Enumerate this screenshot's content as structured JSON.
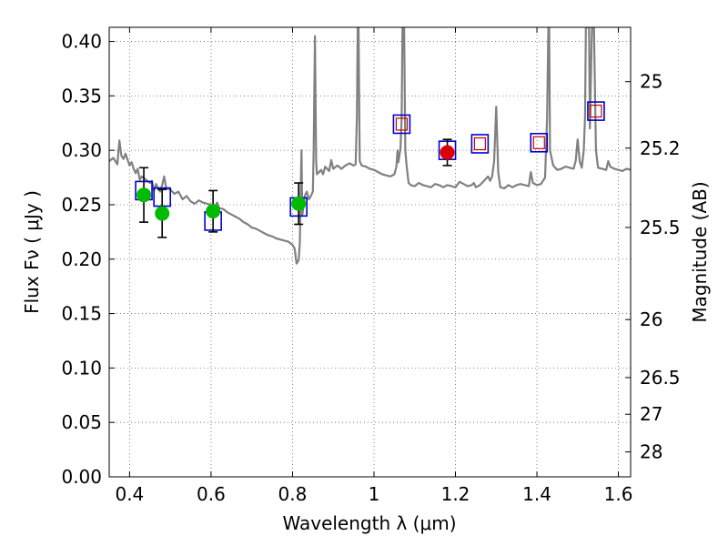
{
  "chart_data": {
    "type": "scatter",
    "xlabel": "Wavelength  λ (μm)",
    "ylabel": "Flux  Fν  ( μJy )",
    "ylabel_right": "Magnitude (AB)",
    "xlim": [
      0.35,
      1.63
    ],
    "ylim": [
      0.0,
      0.413
    ],
    "x_ticks": [
      0.4,
      0.6,
      0.8,
      1.0,
      1.2,
      1.4,
      1.6
    ],
    "x_tick_labels": [
      "0.4",
      "0.6",
      "0.8",
      "1",
      "1.2",
      "1.4",
      "1.6"
    ],
    "y_ticks": [
      0.0,
      0.05,
      0.1,
      0.15,
      0.2,
      0.25,
      0.3,
      0.35,
      0.4
    ],
    "y_tick_labels": [
      "0.00",
      "0.05",
      "0.10",
      "0.15",
      "0.20",
      "0.25",
      "0.30",
      "0.35",
      "0.40"
    ],
    "right_ticks": [
      {
        "label": "25",
        "flux": 0.3631
      },
      {
        "label": "25.2",
        "flux": 0.302
      },
      {
        "label": "25.5",
        "flux": 0.2291
      },
      {
        "label": "26",
        "flux": 0.1445
      },
      {
        "label": "26.5",
        "flux": 0.0912
      },
      {
        "label": "27",
        "flux": 0.0575
      },
      {
        "label": "28",
        "flux": 0.0229
      }
    ],
    "grid": true,
    "colors": {
      "template": "#808080",
      "model_box": "#0000cc",
      "model_box_inner": "#cc0000",
      "observed_green": "#00bb00",
      "observed_red": "#dd0000",
      "error_bar": "#000000"
    },
    "series": [
      {
        "name": "template spectrum",
        "style": "line",
        "points": [
          [
            0.35,
            0.29
          ],
          [
            0.36,
            0.293
          ],
          [
            0.37,
            0.287
          ],
          [
            0.375,
            0.309
          ],
          [
            0.38,
            0.295
          ],
          [
            0.385,
            0.292
          ],
          [
            0.39,
            0.297
          ],
          [
            0.4,
            0.286
          ],
          [
            0.405,
            0.289
          ],
          [
            0.41,
            0.283
          ],
          [
            0.415,
            0.279
          ],
          [
            0.42,
            0.283
          ],
          [
            0.425,
            0.273
          ],
          [
            0.43,
            0.276
          ],
          [
            0.44,
            0.273
          ],
          [
            0.45,
            0.27
          ],
          [
            0.455,
            0.272
          ],
          [
            0.46,
            0.263
          ],
          [
            0.465,
            0.269
          ],
          [
            0.47,
            0.265
          ],
          [
            0.475,
            0.262
          ],
          [
            0.48,
            0.268
          ],
          [
            0.485,
            0.276
          ],
          [
            0.49,
            0.265
          ],
          [
            0.5,
            0.264
          ],
          [
            0.51,
            0.26
          ],
          [
            0.52,
            0.262
          ],
          [
            0.53,
            0.255
          ],
          [
            0.54,
            0.258
          ],
          [
            0.55,
            0.253
          ],
          [
            0.56,
            0.251
          ],
          [
            0.57,
            0.254
          ],
          [
            0.58,
            0.252
          ],
          [
            0.59,
            0.251
          ],
          [
            0.6,
            0.25
          ],
          [
            0.61,
            0.248
          ],
          [
            0.615,
            0.252
          ],
          [
            0.62,
            0.247
          ],
          [
            0.63,
            0.246
          ],
          [
            0.64,
            0.243
          ],
          [
            0.65,
            0.241
          ],
          [
            0.66,
            0.239
          ],
          [
            0.67,
            0.237
          ],
          [
            0.68,
            0.234
          ],
          [
            0.69,
            0.232
          ],
          [
            0.7,
            0.229
          ],
          [
            0.71,
            0.228
          ],
          [
            0.72,
            0.226
          ],
          [
            0.73,
            0.224
          ],
          [
            0.74,
            0.222
          ],
          [
            0.75,
            0.221
          ],
          [
            0.76,
            0.219
          ],
          [
            0.77,
            0.218
          ],
          [
            0.78,
            0.217
          ],
          [
            0.79,
            0.216
          ],
          [
            0.8,
            0.213
          ],
          [
            0.805,
            0.21
          ],
          [
            0.81,
            0.196
          ],
          [
            0.815,
            0.199
          ],
          [
            0.818,
            0.215
          ],
          [
            0.82,
            0.26
          ],
          [
            0.822,
            0.3
          ],
          [
            0.824,
            0.24
          ],
          [
            0.83,
            0.258
          ],
          [
            0.835,
            0.262
          ],
          [
            0.84,
            0.255
          ],
          [
            0.845,
            0.258
          ],
          [
            0.85,
            0.262
          ],
          [
            0.852,
            0.3
          ],
          [
            0.855,
            0.405
          ],
          [
            0.858,
            0.29
          ],
          [
            0.86,
            0.278
          ],
          [
            0.87,
            0.282
          ],
          [
            0.875,
            0.278
          ],
          [
            0.88,
            0.285
          ],
          [
            0.89,
            0.281
          ],
          [
            0.895,
            0.291
          ],
          [
            0.9,
            0.283
          ],
          [
            0.91,
            0.286
          ],
          [
            0.92,
            0.283
          ],
          [
            0.93,
            0.286
          ],
          [
            0.94,
            0.288
          ],
          [
            0.95,
            0.286
          ],
          [
            0.955,
            0.287
          ],
          [
            0.958,
            0.33
          ],
          [
            0.96,
            0.413
          ],
          [
            0.962,
            0.413
          ],
          [
            0.965,
            0.29
          ],
          [
            0.97,
            0.286
          ],
          [
            0.98,
            0.285
          ],
          [
            0.99,
            0.283
          ],
          [
            1.0,
            0.282
          ],
          [
            1.01,
            0.28
          ],
          [
            1.02,
            0.278
          ],
          [
            1.03,
            0.277
          ],
          [
            1.04,
            0.276
          ],
          [
            1.05,
            0.278
          ],
          [
            1.055,
            0.285
          ],
          [
            1.058,
            0.3
          ],
          [
            1.06,
            0.289
          ],
          [
            1.065,
            0.302
          ],
          [
            1.068,
            0.33
          ],
          [
            1.07,
            0.413
          ],
          [
            1.074,
            0.413
          ],
          [
            1.077,
            0.3
          ],
          [
            1.08,
            0.286
          ],
          [
            1.085,
            0.27
          ],
          [
            1.09,
            0.268
          ],
          [
            1.1,
            0.267
          ],
          [
            1.11,
            0.27
          ],
          [
            1.12,
            0.268
          ],
          [
            1.13,
            0.267
          ],
          [
            1.14,
            0.266
          ],
          [
            1.15,
            0.269
          ],
          [
            1.16,
            0.268
          ],
          [
            1.17,
            0.266
          ],
          [
            1.18,
            0.268
          ],
          [
            1.19,
            0.267
          ],
          [
            1.2,
            0.266
          ],
          [
            1.21,
            0.271
          ],
          [
            1.22,
            0.269
          ],
          [
            1.23,
            0.267
          ],
          [
            1.24,
            0.268
          ],
          [
            1.245,
            0.27
          ],
          [
            1.25,
            0.266
          ],
          [
            1.26,
            0.268
          ],
          [
            1.27,
            0.272
          ],
          [
            1.28,
            0.276
          ],
          [
            1.285,
            0.272
          ],
          [
            1.29,
            0.276
          ],
          [
            1.295,
            0.29
          ],
          [
            1.3,
            0.34
          ],
          [
            1.305,
            0.28
          ],
          [
            1.31,
            0.266
          ],
          [
            1.32,
            0.265
          ],
          [
            1.33,
            0.268
          ],
          [
            1.34,
            0.266
          ],
          [
            1.35,
            0.268
          ],
          [
            1.36,
            0.269
          ],
          [
            1.37,
            0.268
          ],
          [
            1.38,
            0.267
          ],
          [
            1.385,
            0.28
          ],
          [
            1.39,
            0.27
          ],
          [
            1.4,
            0.268
          ],
          [
            1.41,
            0.269
          ],
          [
            1.42,
            0.275
          ],
          [
            1.425,
            0.33
          ],
          [
            1.428,
            0.413
          ],
          [
            1.43,
            0.413
          ],
          [
            1.432,
            0.3
          ],
          [
            1.44,
            0.286
          ],
          [
            1.45,
            0.282
          ],
          [
            1.46,
            0.283
          ],
          [
            1.47,
            0.285
          ],
          [
            1.48,
            0.284
          ],
          [
            1.49,
            0.283
          ],
          [
            1.495,
            0.29
          ],
          [
            1.5,
            0.31
          ],
          [
            1.505,
            0.29
          ],
          [
            1.51,
            0.284
          ],
          [
            1.515,
            0.3
          ],
          [
            1.518,
            0.33
          ],
          [
            1.52,
            0.413
          ],
          [
            1.525,
            0.413
          ],
          [
            1.528,
            0.413
          ],
          [
            1.53,
            0.32
          ],
          [
            1.535,
            0.413
          ],
          [
            1.54,
            0.413
          ],
          [
            1.545,
            0.3
          ],
          [
            1.55,
            0.284
          ],
          [
            1.56,
            0.283
          ],
          [
            1.57,
            0.282
          ],
          [
            1.575,
            0.29
          ],
          [
            1.58,
            0.285
          ],
          [
            1.59,
            0.283
          ],
          [
            1.6,
            0.282
          ],
          [
            1.61,
            0.281
          ],
          [
            1.62,
            0.283
          ],
          [
            1.63,
            0.282
          ]
        ]
      },
      {
        "name": "model photometry",
        "style": "open_square",
        "points": [
          {
            "x": 0.435,
            "y": 0.263
          },
          {
            "x": 0.48,
            "y": 0.257
          },
          {
            "x": 0.605,
            "y": 0.235
          },
          {
            "x": 0.815,
            "y": 0.248
          },
          {
            "x": 1.068,
            "y": 0.324,
            "inner": true
          },
          {
            "x": 1.18,
            "y": 0.3
          },
          {
            "x": 1.26,
            "y": 0.306,
            "inner": true
          },
          {
            "x": 1.405,
            "y": 0.307,
            "inner": true
          },
          {
            "x": 1.545,
            "y": 0.336,
            "inner": true
          }
        ]
      },
      {
        "name": "observed flux",
        "style": "circle_with_errorbars",
        "points": [
          {
            "x": 0.435,
            "y": 0.259,
            "err": 0.025,
            "color": "green"
          },
          {
            "x": 0.48,
            "y": 0.242,
            "err": 0.022,
            "color": "green"
          },
          {
            "x": 0.605,
            "y": 0.244,
            "err": 0.019,
            "color": "green"
          },
          {
            "x": 0.815,
            "y": 0.251,
            "err": 0.019,
            "color": "green"
          },
          {
            "x": 1.18,
            "y": 0.298,
            "err": 0.012,
            "color": "red"
          }
        ]
      }
    ]
  }
}
